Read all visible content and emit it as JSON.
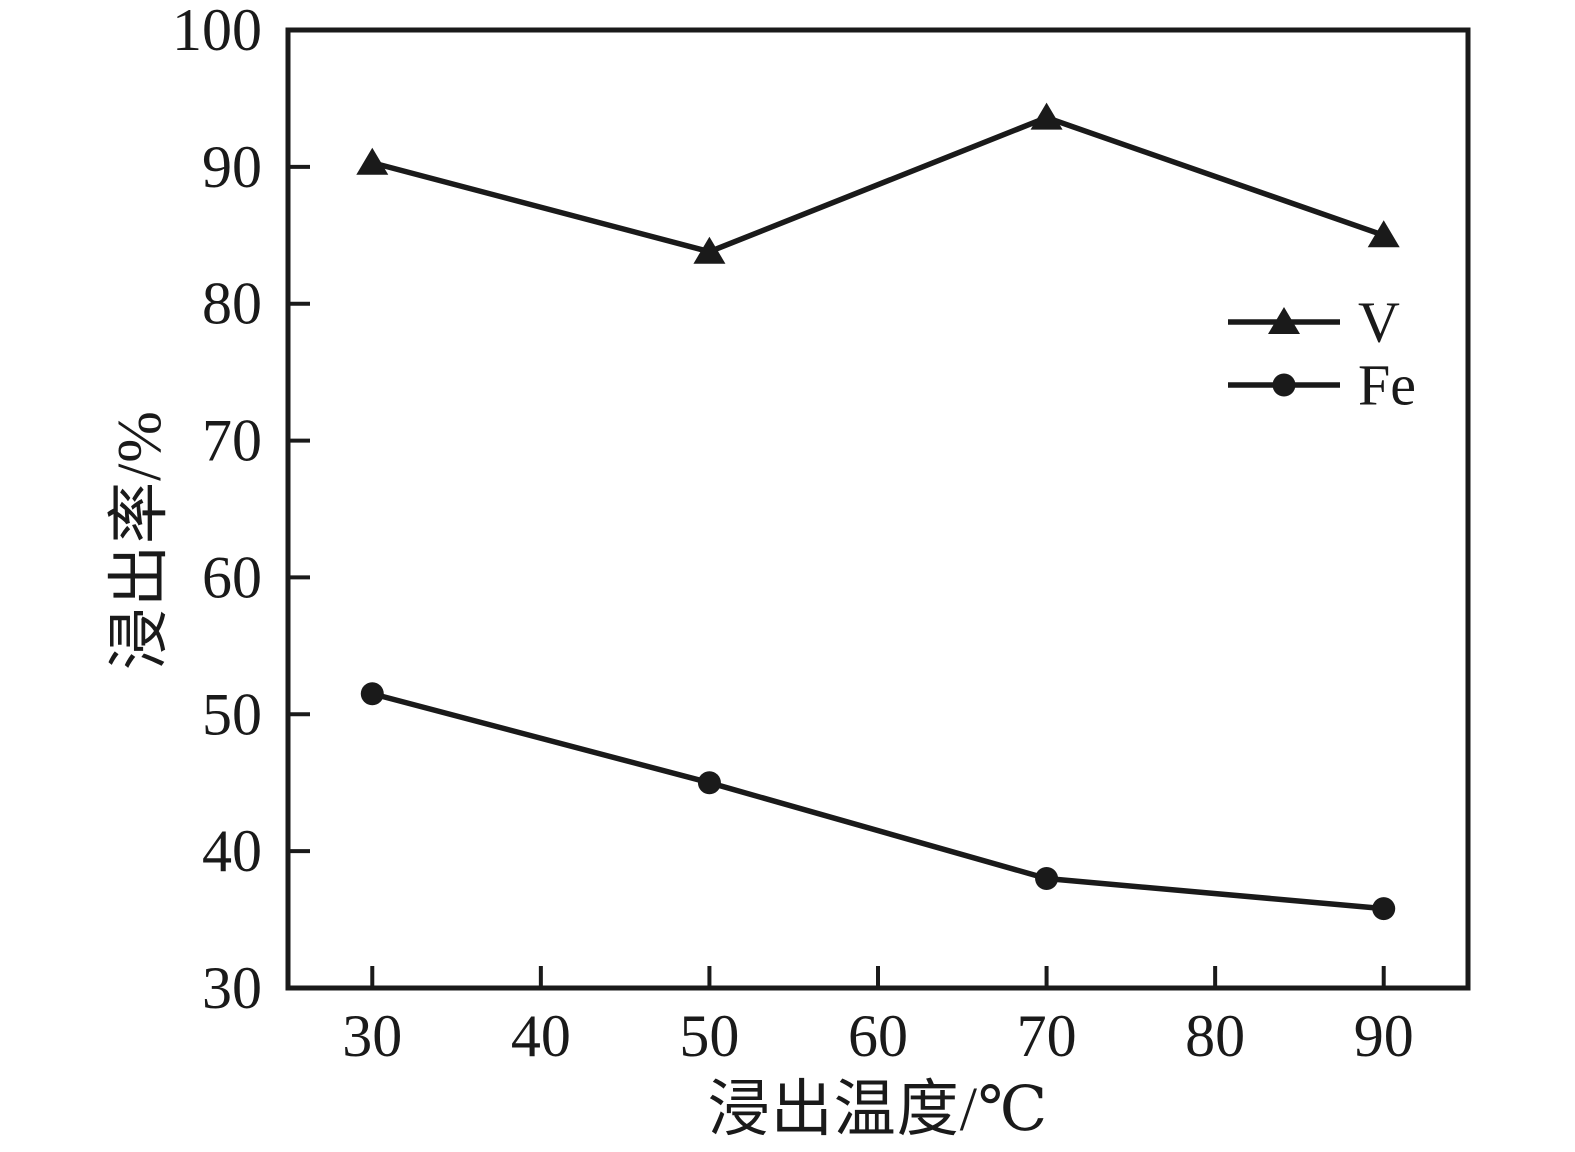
{
  "figure": {
    "background": "#ffffff",
    "ink_color": "#1a1a1a"
  },
  "chart_data": {
    "type": "line",
    "title": "",
    "xlabel": "浸出温度/℃",
    "ylabel": "浸出率/%",
    "x": [
      30,
      50,
      70,
      90
    ],
    "series": [
      {
        "name": "V",
        "marker": "triangle",
        "values": [
          90.3,
          83.8,
          93.6,
          85.0
        ]
      },
      {
        "name": "Fe",
        "marker": "circle",
        "values": [
          51.5,
          45.0,
          38.0,
          35.8
        ]
      }
    ],
    "xlim": [
      25,
      95
    ],
    "ylim": [
      30,
      100
    ],
    "x_ticks": [
      30,
      40,
      50,
      60,
      70,
      80,
      90
    ],
    "y_ticks": [
      30,
      40,
      50,
      60,
      70,
      80,
      90,
      100
    ],
    "grid": false,
    "legend": {
      "entries": [
        "V",
        "Fe"
      ],
      "position": "inside-right-upper"
    }
  }
}
